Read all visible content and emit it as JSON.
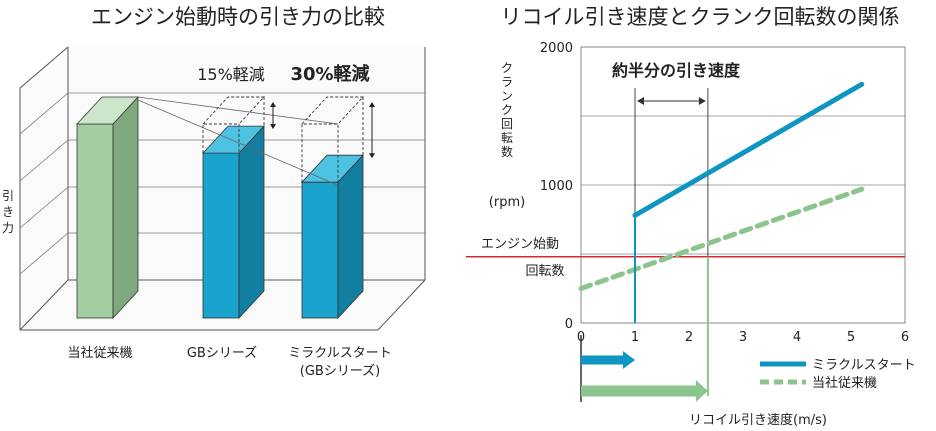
{
  "chart_data": [
    {
      "type": "bar",
      "title": "エンジン始動時の引き力の比較",
      "ylabel": "引き力",
      "categories": [
        "当社従来機",
        "GBシリーズ",
        "ミラクルスタート\n(GBシリーズ)"
      ],
      "values": [
        100,
        85,
        70
      ],
      "annotations": [
        "15%軽減",
        "30%軽減"
      ],
      "colors": {
        "conventional": "#a5cda3",
        "gb": "#1aa3cc"
      },
      "grid": true
    },
    {
      "type": "line",
      "title": "リコイル引き速度とクランク回転数の関係",
      "xlabel": "リコイル引き速度(m/s)",
      "ylabel": "クランク回転数",
      "yunit": "(rpm)",
      "xlim": [
        0,
        6
      ],
      "ylim": [
        0,
        2000
      ],
      "x_ticks": [
        "0",
        "1",
        "2",
        "3",
        "4",
        "5",
        "6"
      ],
      "y_ticks": [
        "0",
        "1000",
        "2000"
      ],
      "series": [
        {
          "name": "ミラクルスタート",
          "x": [
            1,
            5.2
          ],
          "y": [
            780,
            1730
          ],
          "color": "#0f95c2",
          "style": "solid"
        },
        {
          "name": "当社従来機",
          "x": [
            0,
            5.2
          ],
          "y": [
            250,
            970
          ],
          "color": "#8cc48e",
          "style": "dashed"
        }
      ],
      "threshold": {
        "label": "エンジン始動",
        "label2": "回転数",
        "y": 480,
        "color": "#d82634"
      },
      "annotation": "約半分の引き速度",
      "arrows": [
        {
          "series": "ミラクルスタート",
          "to_x": 1,
          "color": "#0f95c2"
        },
        {
          "series": "当社従来機",
          "to_x": 2.35,
          "color": "#8cc48e"
        }
      ],
      "grid": true
    }
  ]
}
